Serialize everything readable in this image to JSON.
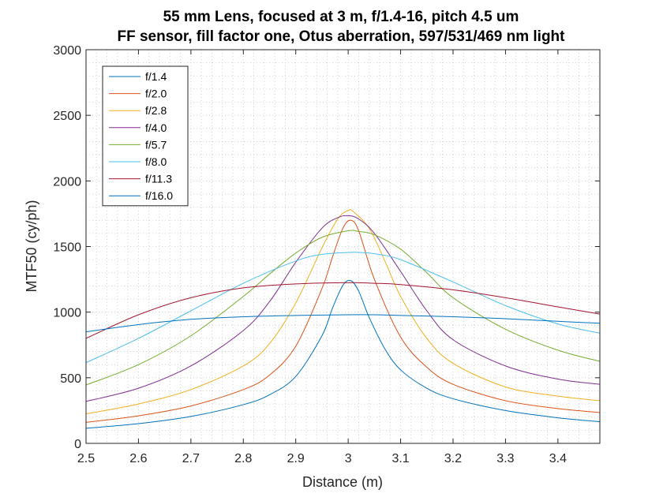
{
  "chart_data": {
    "type": "line",
    "title": [
      "55 mm Lens, focused at 3 m, f/1.4-16, pitch 4.5 um",
      "FF sensor, fill factor one, Otus aberration, 597/531/469 nm light"
    ],
    "xlabel": "Distance (m)",
    "ylabel": "MTF50 (cy/ph)",
    "xlim": [
      2.5,
      3.48
    ],
    "ylim": [
      0,
      3000
    ],
    "xticks": [
      2.5,
      2.6,
      2.7,
      2.8,
      2.9,
      3.0,
      3.1,
      3.2,
      3.3,
      3.4
    ],
    "xtick_labels": [
      "2.5",
      "2.6",
      "2.7",
      "2.8",
      "2.9",
      "3",
      "3.1",
      "3.2",
      "3.3",
      "3.4"
    ],
    "yticks": [
      0,
      500,
      1000,
      1500,
      2000,
      2500,
      3000
    ],
    "ytick_labels": [
      "0",
      "500",
      "1000",
      "1500",
      "2000",
      "2500",
      "3000"
    ],
    "grid": true,
    "legend_position": "top-left",
    "series": [
      {
        "name": "f/1.4",
        "color": "#0072BD",
        "x": [
          2.5,
          2.6,
          2.7,
          2.8,
          2.85,
          2.9,
          2.95,
          2.97,
          2.99,
          3.005,
          3.02,
          3.04,
          3.07,
          3.1,
          3.15,
          3.2,
          3.3,
          3.4,
          3.48
        ],
        "y": [
          115,
          150,
          205,
          295,
          370,
          510,
          820,
          1030,
          1205,
          1240,
          1160,
          960,
          720,
          560,
          420,
          340,
          250,
          195,
          165
        ]
      },
      {
        "name": "f/2.0",
        "color": "#D95319",
        "x": [
          2.5,
          2.6,
          2.7,
          2.8,
          2.85,
          2.9,
          2.95,
          2.97,
          2.99,
          3.005,
          3.02,
          3.05,
          3.1,
          3.15,
          3.2,
          3.3,
          3.4,
          3.48
        ],
        "y": [
          160,
          210,
          285,
          410,
          520,
          740,
          1180,
          1420,
          1640,
          1700,
          1620,
          1250,
          810,
          580,
          450,
          325,
          265,
          235
        ]
      },
      {
        "name": "f/2.8",
        "color": "#EDB120",
        "x": [
          2.5,
          2.6,
          2.7,
          2.8,
          2.85,
          2.9,
          2.95,
          2.98,
          3.0,
          3.01,
          3.04,
          3.07,
          3.1,
          3.15,
          3.2,
          3.3,
          3.4,
          3.48
        ],
        "y": [
          225,
          300,
          410,
          590,
          760,
          1070,
          1490,
          1710,
          1775,
          1765,
          1640,
          1390,
          1120,
          800,
          610,
          430,
          360,
          325
        ]
      },
      {
        "name": "f/4.0",
        "color": "#7E2F8E",
        "x": [
          2.5,
          2.6,
          2.7,
          2.8,
          2.85,
          2.9,
          2.95,
          2.98,
          3.0,
          3.02,
          3.05,
          3.1,
          3.15,
          3.2,
          3.3,
          3.4,
          3.48
        ],
        "y": [
          320,
          420,
          590,
          860,
          1080,
          1380,
          1640,
          1720,
          1735,
          1710,
          1600,
          1310,
          1010,
          790,
          590,
          490,
          450
        ]
      },
      {
        "name": "f/5.7",
        "color": "#77AC30",
        "x": [
          2.5,
          2.6,
          2.7,
          2.8,
          2.85,
          2.9,
          2.95,
          3.0,
          3.02,
          3.05,
          3.1,
          3.15,
          3.2,
          3.3,
          3.4,
          3.48
        ],
        "y": [
          445,
          600,
          820,
          1120,
          1290,
          1450,
          1570,
          1620,
          1615,
          1590,
          1480,
          1300,
          1110,
          870,
          710,
          625
        ]
      },
      {
        "name": "f/8.0",
        "color": "#4DBEEE",
        "x": [
          2.5,
          2.6,
          2.7,
          2.8,
          2.9,
          2.95,
          3.0,
          3.02,
          3.05,
          3.1,
          3.2,
          3.3,
          3.4,
          3.48
        ],
        "y": [
          615,
          800,
          1010,
          1220,
          1390,
          1440,
          1455,
          1455,
          1445,
          1400,
          1230,
          1050,
          910,
          840
        ]
      },
      {
        "name": "f/11.3",
        "color": "#A2142F",
        "x": [
          2.5,
          2.6,
          2.7,
          2.8,
          2.9,
          3.0,
          3.05,
          3.1,
          3.2,
          3.3,
          3.4,
          3.48
        ],
        "y": [
          800,
          980,
          1110,
          1185,
          1215,
          1225,
          1220,
          1210,
          1170,
          1110,
          1040,
          985
        ]
      },
      {
        "name": "f/16.0",
        "color": "#0072BD",
        "x": [
          2.5,
          2.6,
          2.7,
          2.8,
          2.9,
          3.0,
          3.05,
          3.1,
          3.2,
          3.3,
          3.4,
          3.48
        ],
        "y": [
          850,
          905,
          945,
          965,
          975,
          980,
          980,
          975,
          965,
          950,
          930,
          915
        ]
      }
    ]
  }
}
